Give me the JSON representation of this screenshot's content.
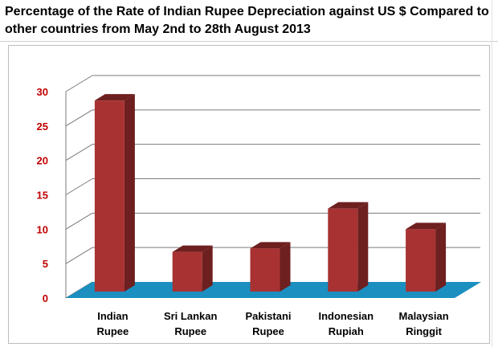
{
  "chart_data": {
    "type": "bar",
    "title_lines": [
      "Percentage of the  Rate of Indian Rupee Depreciation against US $ Compared to",
      "other countries from May 2nd to 28th August 2013"
    ],
    "categories": [
      [
        "Indian",
        "Rupee"
      ],
      [
        "Sri Lankan",
        "Rupee"
      ],
      [
        "Pakistani",
        "Rupee"
      ],
      [
        "Indonesian",
        "Rupiah"
      ],
      [
        "Malaysian",
        "Ringgit"
      ]
    ],
    "values": [
      28,
      6,
      6.5,
      12.3,
      9.3
    ],
    "ylim": [
      0,
      30
    ],
    "yticks": [
      0,
      5,
      10,
      15,
      20,
      25,
      30
    ],
    "xlabel": "",
    "ylabel": "",
    "grid": true,
    "colors": {
      "bar_front": "#a83232",
      "bar_side": "#6e1f1f",
      "bar_top": "#c04848",
      "floor": "#1a8fc0",
      "grid": "#7a7a7a",
      "tick_label": "#c00000"
    }
  }
}
